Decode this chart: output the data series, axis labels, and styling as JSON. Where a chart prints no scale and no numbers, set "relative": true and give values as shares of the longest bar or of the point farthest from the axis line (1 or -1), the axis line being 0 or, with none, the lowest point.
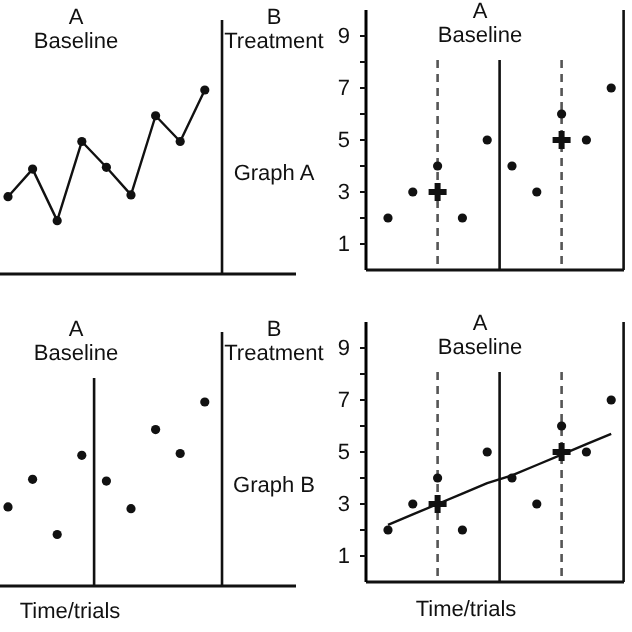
{
  "chart_data": [
    {
      "type": "line",
      "title": "A\nBaseline",
      "categories": [
        null,
        null,
        null,
        null,
        null,
        null,
        null,
        null,
        null,
        null,
        null,
        null
      ],
      "relative": true,
      "color": "#111111",
      "marker": "circle",
      "values": [
        0.42,
        0.57,
        0.29,
        0.72,
        0.58,
        0.43,
        0.86,
        0.72,
        1.0,
        null,
        null,
        null
      ],
      "annotations": [
        "B\nTreatment",
        "Graph A"
      ]
    },
    {
      "type": "scatter",
      "title": "A\nBaseline",
      "categories": [
        null,
        null,
        null,
        null,
        null,
        null,
        null,
        null,
        null,
        null
      ],
      "marker": "circle",
      "ylim": [
        0,
        10
      ],
      "yticks": [
        1,
        {
          "value": 2,
          "label": null
        },
        3,
        {
          "value": 4,
          "label": null
        },
        5,
        {
          "value": 6,
          "label": null
        },
        7,
        {
          "value": 8,
          "label": null
        },
        9
      ],
      "series": [
        {
          "color": "#111111",
          "values": [
            2,
            3,
            4,
            2,
            5,
            4,
            3,
            6,
            5,
            7
          ]
        },
        {
          "color": "#111111",
          "marker": "cross",
          "values": [
            null,
            null,
            3,
            null,
            null,
            null,
            null,
            5,
            null,
            null
          ]
        }
      ]
    },
    {
      "type": "scatter",
      "title": "A\nBaseline",
      "xlabel": "Time/trials",
      "categories": [
        null,
        null,
        null,
        null,
        null,
        null,
        null,
        null,
        null,
        null,
        null,
        null
      ],
      "relative": true,
      "color": "#111111",
      "marker": "circle",
      "values": [
        0.43,
        0.58,
        0.28,
        0.71,
        0.57,
        0.42,
        0.85,
        0.72,
        1.0,
        null,
        null,
        null
      ],
      "annotations": [
        "B\nTreatment",
        "Graph B"
      ]
    },
    {
      "type": "scatter",
      "title": "A\nBaseline",
      "xlabel": "Time/trials",
      "categories": [
        null,
        null,
        null,
        null,
        null,
        null,
        null,
        null,
        null,
        null
      ],
      "marker": "circle",
      "ylim": [
        0,
        10
      ],
      "yticks": [
        1,
        {
          "value": 2,
          "label": null
        },
        3,
        {
          "value": 4,
          "label": null
        },
        5,
        {
          "value": 6,
          "label": null
        },
        7,
        {
          "value": 8,
          "label": null
        },
        9
      ],
      "series": [
        {
          "color": "#111111",
          "values": [
            2,
            3,
            4,
            2,
            5,
            4,
            3,
            6,
            5,
            7
          ]
        },
        {
          "color": "#111111",
          "marker": "cross",
          "values": [
            null,
            null,
            3,
            null,
            null,
            null,
            null,
            5,
            null,
            null
          ]
        },
        {
          "type": "line",
          "color": "#111111",
          "marker": "none",
          "values": [
            2.2,
            2.6,
            3.0,
            3.4,
            3.8,
            4.1,
            4.5,
            4.9,
            5.3,
            5.7
          ]
        }
      ]
    }
  ]
}
